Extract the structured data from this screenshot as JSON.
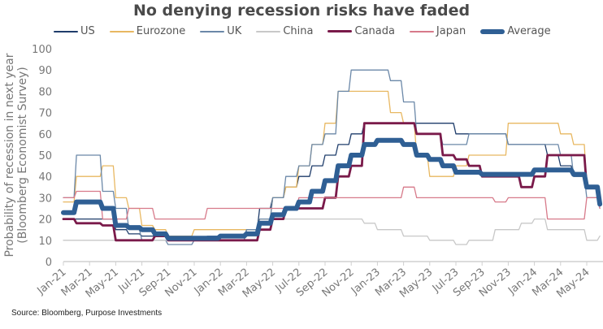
{
  "chart_data": {
    "type": "line",
    "title": "No denying recession risks have faded",
    "ylabel_line1": "Probability of recession in next year",
    "ylabel_line2": "(Bloomberg Economist Survey)",
    "xlabel": "",
    "ylim": [
      0,
      100
    ],
    "yticks": [
      0,
      10,
      20,
      30,
      40,
      50,
      60,
      70,
      80,
      90,
      100
    ],
    "xtick_labels": [
      "Jan-21",
      "Mar-21",
      "May-21",
      "Jul-21",
      "Sep-21",
      "Nov-21",
      "Jan-22",
      "Mar-22",
      "May-22",
      "Jul-22",
      "Sep-22",
      "Nov-22",
      "Jan-23",
      "Mar-23",
      "May-23",
      "Jul-23",
      "Sep-23",
      "Nov-23",
      "Jan-24",
      "Mar-24",
      "May-24"
    ],
    "x_months": [
      "Jan-21",
      "Feb-21",
      "Mar-21",
      "Apr-21",
      "May-21",
      "Jun-21",
      "Jul-21",
      "Aug-21",
      "Sep-21",
      "Oct-21",
      "Nov-21",
      "Dec-21",
      "Jan-22",
      "Feb-22",
      "Mar-22",
      "Apr-22",
      "May-22",
      "Jun-22",
      "Jul-22",
      "Aug-22",
      "Sep-22",
      "Oct-22",
      "Nov-22",
      "Dec-22",
      "Jan-23",
      "Feb-23",
      "Mar-23",
      "Apr-23",
      "May-23",
      "Jun-23",
      "Jul-23",
      "Aug-23",
      "Sep-23",
      "Oct-23",
      "Nov-23",
      "Dec-23",
      "Jan-24",
      "Feb-24",
      "Mar-24",
      "Apr-24",
      "May-24",
      "Jun-24"
    ],
    "grid": false,
    "legend_position": "top",
    "series": [
      {
        "name": "US",
        "color": "#1f3d6b",
        "values": [
          20,
          20,
          20,
          20,
          15,
          13,
          12,
          12,
          10,
          10,
          10,
          10,
          10,
          10,
          15,
          25,
          30,
          35,
          40,
          45,
          50,
          55,
          60,
          65,
          65,
          65,
          65,
          65,
          65,
          65,
          60,
          60,
          60,
          60,
          55,
          55,
          55,
          50,
          45,
          40,
          35,
          30
        ]
      },
      {
        "name": "Eurozone",
        "color": "#e8b862",
        "values": [
          28,
          40,
          40,
          45,
          30,
          25,
          17,
          15,
          12,
          12,
          15,
          15,
          15,
          15,
          15,
          20,
          30,
          35,
          45,
          55,
          65,
          80,
          80,
          80,
          80,
          70,
          65,
          50,
          40,
          40,
          45,
          50,
          50,
          50,
          65,
          65,
          65,
          65,
          60,
          55,
          35,
          30
        ]
      },
      {
        "name": "UK",
        "color": "#6b88a8",
        "values": [
          30,
          50,
          50,
          33,
          25,
          15,
          10,
          10,
          8,
          8,
          10,
          12,
          12,
          12,
          15,
          20,
          30,
          40,
          45,
          55,
          60,
          80,
          90,
          90,
          90,
          85,
          75,
          60,
          60,
          55,
          55,
          60,
          60,
          60,
          55,
          55,
          55,
          55,
          50,
          40,
          30,
          25
        ]
      },
      {
        "name": "China",
        "color": "#c8c8c8",
        "values": [
          10,
          10,
          10,
          10,
          10,
          10,
          10,
          10,
          10,
          10,
          10,
          10,
          10,
          10,
          12,
          15,
          20,
          20,
          20,
          20,
          20,
          20,
          20,
          18,
          15,
          15,
          12,
          12,
          10,
          10,
          8,
          10,
          10,
          15,
          15,
          18,
          20,
          15,
          15,
          15,
          10,
          12
        ]
      },
      {
        "name": "Canada",
        "color": "#7a1a4a",
        "values": [
          20,
          18,
          18,
          17,
          10,
          10,
          10,
          12,
          10,
          10,
          10,
          10,
          10,
          10,
          10,
          15,
          20,
          25,
          25,
          25,
          30,
          40,
          45,
          65,
          65,
          65,
          65,
          60,
          60,
          50,
          48,
          45,
          40,
          40,
          40,
          35,
          40,
          50,
          50,
          50,
          35,
          30
        ]
      },
      {
        "name": "Japan",
        "color": "#d77a8a",
        "values": [
          30,
          33,
          33,
          20,
          20,
          25,
          25,
          20,
          20,
          20,
          20,
          25,
          25,
          25,
          25,
          25,
          25,
          25,
          30,
          30,
          30,
          30,
          30,
          30,
          30,
          30,
          35,
          30,
          30,
          30,
          30,
          30,
          30,
          28,
          30,
          30,
          30,
          20,
          20,
          20,
          30,
          25
        ]
      },
      {
        "name": "Average",
        "color": "#2f5f94",
        "values": [
          23,
          28,
          28,
          25,
          17,
          16,
          15,
          13,
          11,
          11,
          11,
          11,
          12,
          12,
          13,
          18,
          22,
          25,
          28,
          33,
          38,
          45,
          50,
          55,
          57,
          57,
          55,
          50,
          48,
          45,
          42,
          42,
          41,
          41,
          41,
          41,
          43,
          43,
          43,
          41,
          35,
          27
        ]
      }
    ]
  },
  "footer": {
    "source": "Source: Bloomberg, Purpose Investments"
  }
}
